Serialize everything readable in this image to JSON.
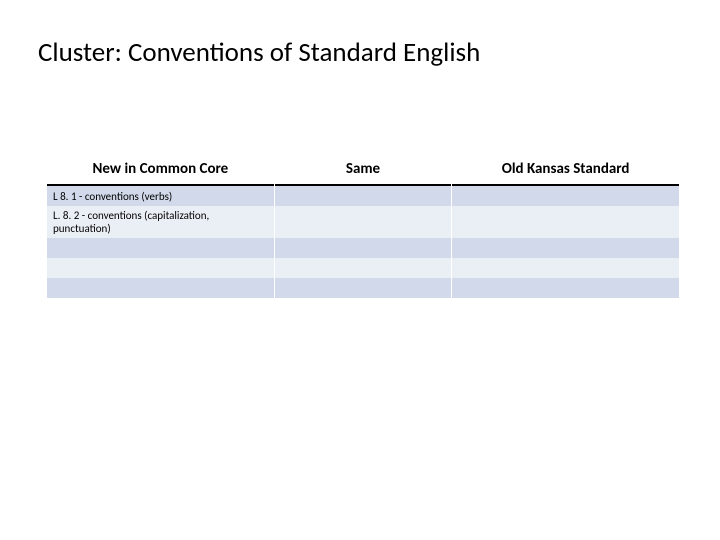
{
  "title": "Cluster:  Conventions of Standard English",
  "table": {
    "columns": [
      {
        "label": "New in Common Core",
        "width_pct": 36
      },
      {
        "label": "Same",
        "width_pct": 28
      },
      {
        "label": "Old Kansas Standard",
        "width_pct": 36
      }
    ],
    "rows": [
      {
        "cells": [
          "L 8. 1 - conventions (verbs)",
          "",
          ""
        ],
        "stripe": "even"
      },
      {
        "cells": [
          "L. 8. 2 - conventions (capitalization, punctuation)",
          "",
          ""
        ],
        "stripe": "odd",
        "multiline": true
      },
      {
        "cells": [
          "",
          "",
          ""
        ],
        "stripe": "even"
      },
      {
        "cells": [
          "",
          "",
          ""
        ],
        "stripe": "odd"
      },
      {
        "cells": [
          "",
          "",
          ""
        ],
        "stripe": "even"
      }
    ],
    "header_bg": "#ffffff",
    "even_bg": "#d1d9ea",
    "odd_bg": "#eaeef5",
    "header_border": "#000000",
    "header_fontsize": 15,
    "cell_fontsize": 11
  }
}
